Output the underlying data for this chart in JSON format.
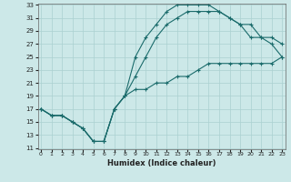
{
  "bg_color": "#cce8e8",
  "grid_color": "#aad0d0",
  "line_color": "#1a6b6b",
  "xlabel": "Humidex (Indice chaleur)",
  "xlim": [
    0,
    23
  ],
  "ylim": [
    11,
    33
  ],
  "xticks": [
    0,
    1,
    2,
    3,
    4,
    5,
    6,
    7,
    8,
    9,
    10,
    11,
    12,
    13,
    14,
    15,
    16,
    17,
    18,
    19,
    20,
    21,
    22,
    23
  ],
  "yticks": [
    11,
    13,
    15,
    17,
    19,
    21,
    23,
    25,
    27,
    29,
    31,
    33
  ],
  "curve1_x": [
    0,
    1,
    2,
    3,
    4,
    5,
    6,
    7,
    8,
    9,
    10,
    11,
    12,
    13,
    14,
    15,
    16,
    17,
    18,
    19,
    20,
    21,
    22,
    23
  ],
  "curve1_y": [
    17,
    16,
    16,
    15,
    14,
    12,
    12,
    17,
    19,
    25,
    28,
    30,
    32,
    33,
    33,
    33,
    33,
    32,
    31,
    30,
    28,
    28,
    27,
    25
  ],
  "curve2_x": [
    0,
    1,
    2,
    3,
    4,
    5,
    6,
    7,
    8,
    9,
    10,
    11,
    12,
    13,
    14,
    15,
    16,
    17,
    18,
    19,
    20,
    21,
    22,
    23
  ],
  "curve2_y": [
    17,
    16,
    16,
    15,
    14,
    12,
    12,
    17,
    19,
    22,
    25,
    28,
    30,
    31,
    32,
    32,
    32,
    32,
    31,
    30,
    30,
    28,
    28,
    27
  ],
  "curve3_x": [
    0,
    1,
    2,
    3,
    4,
    5,
    6,
    7,
    8,
    9,
    10,
    11,
    12,
    13,
    14,
    15,
    16,
    17,
    18,
    19,
    20,
    21,
    22,
    23
  ],
  "curve3_y": [
    17,
    16,
    16,
    15,
    14,
    12,
    12,
    17,
    19,
    20,
    20,
    21,
    21,
    22,
    22,
    23,
    24,
    24,
    24,
    24,
    24,
    24,
    24,
    25
  ]
}
